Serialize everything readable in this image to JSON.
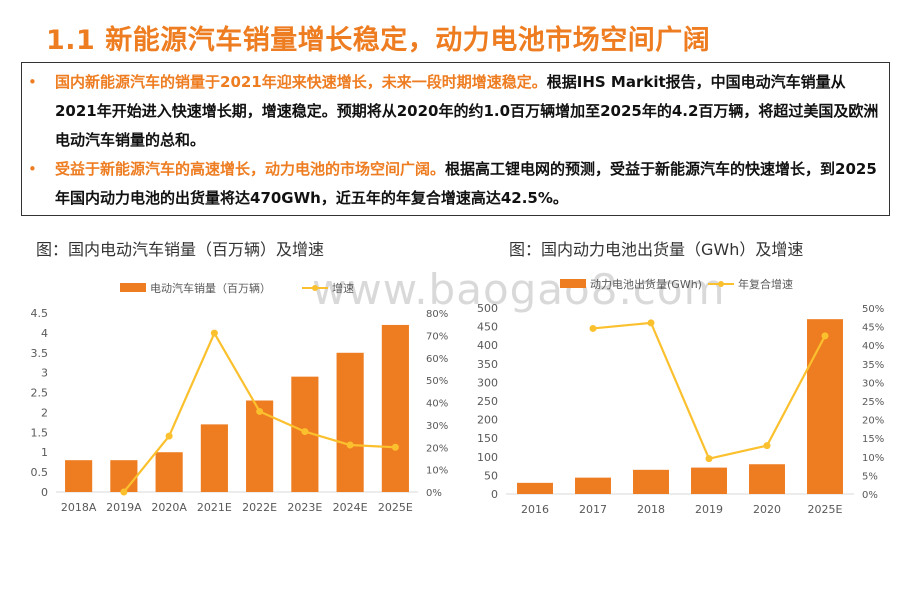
{
  "title": "1.1 新能源汽车销量增长稳定，动力电池市场空间广阔",
  "bullets": [
    {
      "marker": "•",
      "highlight": "国内新能源汽车的销量于2021年迎来快速增长，未来一段时期增速稳定。",
      "rest": "根据IHS Markit报告，中国电动汽车销量从2021年开始进入快速增长期，增速稳定。预期将从2020年的约1.0百万辆增加至2025年的4.2百万辆，将超过美国及欧洲电动汽车销量的总和。"
    },
    {
      "marker": "•",
      "highlight": "受益于新能源汽车的高速增长，动力电池的市场空间广阔。",
      "rest": "根据高工锂电网的预测，受益于新能源汽车的快速增长，到2025年国内动力电池的出货量将达470GWh，近五年的年复合增速高达42.5%。"
    }
  ],
  "watermark": "www.baogao8.com",
  "captions": {
    "left": "图：国内电动汽车销量（百万辆）及增速",
    "right": "图：国内动力电池出货量（GWh）及增速"
  },
  "colors": {
    "bar": "#ee7d22",
    "line": "#fbc02d",
    "title": "#ee7d22"
  },
  "chart_data": [
    {
      "type": "bar",
      "categories": [
        "2018A",
        "2019A",
        "2020A",
        "2021E",
        "2022E",
        "2023E",
        "2024E",
        "2025E"
      ],
      "series": [
        {
          "name": "电动汽车销量（百万辆）",
          "type": "bar",
          "axis": "left",
          "values": [
            0.8,
            0.8,
            1.0,
            1.7,
            2.3,
            2.9,
            3.5,
            4.2
          ]
        },
        {
          "name": "增速",
          "type": "line",
          "axis": "right",
          "values": [
            null,
            0,
            25,
            71,
            36,
            27,
            21,
            20
          ]
        }
      ],
      "y_left": {
        "ticks": [
          "0",
          "0.5",
          "1",
          "1.5",
          "2",
          "2.5",
          "3",
          "3.5",
          "4",
          "4.5"
        ],
        "range": [
          0,
          4.5
        ]
      },
      "y_right": {
        "ticks": [
          "0%",
          "10%",
          "20%",
          "30%",
          "40%",
          "50%",
          "60%",
          "70%",
          "80%"
        ],
        "range": [
          0,
          80
        ]
      },
      "legend": "top"
    },
    {
      "type": "bar",
      "categories": [
        "2016",
        "2017",
        "2018",
        "2019",
        "2020",
        "2025E"
      ],
      "series": [
        {
          "name": "动力电池出货量(GWh)",
          "type": "bar",
          "axis": "left",
          "values": [
            30,
            44,
            65,
            71,
            80,
            470
          ]
        },
        {
          "name": "年复合增速",
          "type": "line",
          "axis": "right",
          "values": [
            null,
            44.5,
            46,
            9.5,
            13,
            42.5
          ]
        }
      ],
      "y_left": {
        "ticks": [
          "0",
          "50",
          "100",
          "150",
          "200",
          "250",
          "300",
          "350",
          "400",
          "450",
          "500"
        ],
        "range": [
          0,
          500
        ]
      },
      "y_right": {
        "ticks": [
          "0%",
          "5%",
          "10%",
          "15%",
          "20%",
          "25%",
          "30%",
          "35%",
          "40%",
          "45%",
          "50%"
        ],
        "range": [
          0,
          50
        ]
      },
      "legend": "top"
    }
  ]
}
